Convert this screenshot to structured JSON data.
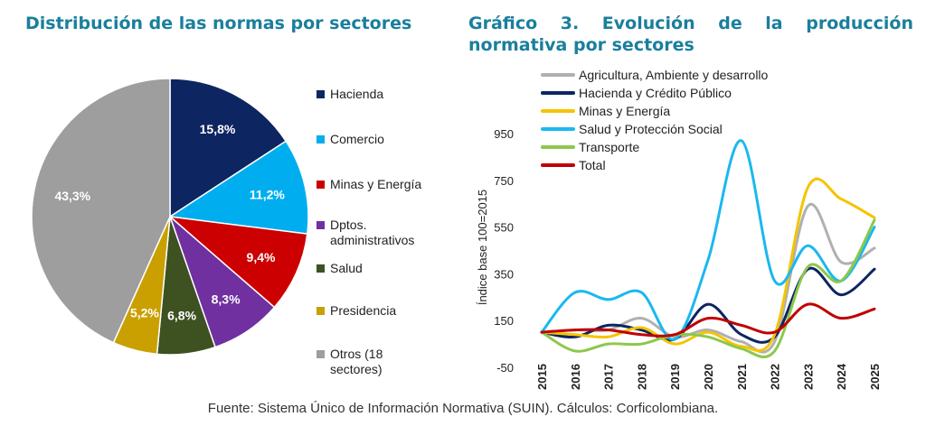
{
  "left_title": "Distribución de las normas por sectores",
  "right_title": "Gráfico 3. Evolución de la producción normativa por sectores",
  "source": "Fuente: Sistema Único de Información Normativa (SUIN). Cálculos: Corficolombiana.",
  "chart_data": [
    {
      "type": "pie",
      "title": "Distribución de las normas por sectores",
      "start_angle": 0,
      "direction": "clockwise",
      "legend_placement": "right",
      "slices": [
        {
          "name": "Hacienda",
          "value": 15.8,
          "label": "15,8%",
          "color": "#0d2561"
        },
        {
          "name": "Comercio",
          "value": 11.2,
          "label": "11,2%",
          "color": "#00aeef"
        },
        {
          "name": "Minas y Energía",
          "value": 9.4,
          "label": "9,4%",
          "color": "#cc0000"
        },
        {
          "name": "Dptos.\nadministrativos",
          "value": 8.3,
          "label": "8,3%",
          "color": "#7030a0"
        },
        {
          "name": "Salud",
          "value": 6.8,
          "label": "6,8%",
          "color": "#3d5121"
        },
        {
          "name": "Presidencia",
          "value": 5.2,
          "label": "5,2%",
          "color": "#c9a000"
        },
        {
          "name": "Otros (18\nsectores)",
          "value": 43.3,
          "label": "43,3%",
          "color": "#9e9e9e"
        }
      ]
    },
    {
      "type": "line",
      "title": "Gráfico 3. Evolución de la producción normativa por sectores",
      "ylabel": "Índice base 100=2015",
      "xlabel": "",
      "x": [
        2015,
        2016,
        2017,
        2018,
        2019,
        2020,
        2021,
        2022,
        2023,
        2024,
        2025
      ],
      "yticks": [
        -50,
        150,
        350,
        550,
        750,
        950
      ],
      "ylim": [
        -50,
        1050
      ],
      "grid": false,
      "legend_placement": "top-left",
      "smooth": true,
      "series": [
        {
          "name": "Agricultura, Ambiente y desarrollo",
          "color": "#b0b0b0",
          "values": [
            100,
            110,
            110,
            160,
            80,
            110,
            60,
            60,
            640,
            400,
            460
          ]
        },
        {
          "name": "Hacienda y Crédito Público",
          "color": "#0d2561",
          "values": [
            100,
            80,
            130,
            110,
            70,
            220,
            90,
            80,
            370,
            260,
            370
          ]
        },
        {
          "name": "Minas y Energía",
          "color": "#f5c400",
          "values": [
            100,
            90,
            80,
            120,
            50,
            100,
            40,
            90,
            720,
            670,
            590
          ]
        },
        {
          "name": "Salud y Protección Social",
          "color": "#1ab8ef",
          "values": [
            100,
            270,
            240,
            270,
            70,
            410,
            920,
            320,
            470,
            320,
            550
          ]
        },
        {
          "name": "Transporte",
          "color": "#8cc84b",
          "values": [
            100,
            20,
            50,
            50,
            90,
            80,
            30,
            20,
            380,
            320,
            580
          ]
        },
        {
          "name": "Total",
          "color": "#c00000",
          "values": [
            100,
            110,
            110,
            90,
            90,
            160,
            130,
            100,
            220,
            160,
            200
          ]
        }
      ]
    }
  ]
}
